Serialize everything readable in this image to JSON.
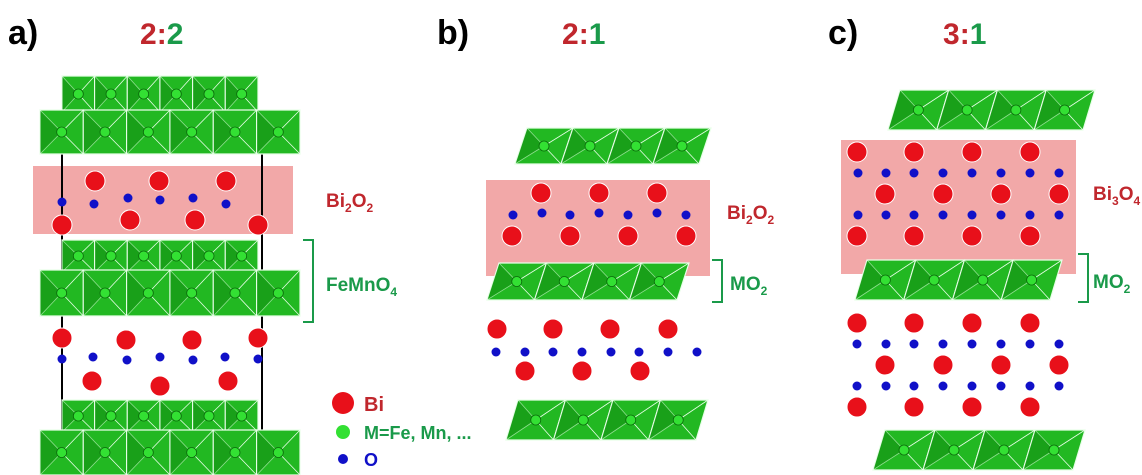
{
  "panels": [
    {
      "id": "a",
      "letter": "a)",
      "ratio": {
        "left": "2",
        "sep": ":",
        "right": "2"
      },
      "labels": [
        {
          "kind": "red",
          "main": "Bi",
          "sub1": "2",
          "mid": "O",
          "sub2": "2"
        },
        {
          "kind": "green",
          "main": "FeMnO",
          "sub1": "4",
          "mid": "",
          "sub2": ""
        }
      ]
    },
    {
      "id": "b",
      "letter": "b)",
      "ratio": {
        "left": "2",
        "sep": ":",
        "right": "1"
      },
      "labels": [
        {
          "kind": "red",
          "main": "Bi",
          "sub1": "2",
          "mid": "O",
          "sub2": "2"
        },
        {
          "kind": "green",
          "main": "MO",
          "sub1": "2",
          "mid": "",
          "sub2": ""
        }
      ]
    },
    {
      "id": "c",
      "letter": "c)",
      "ratio": {
        "left": "3",
        "sep": ":",
        "right": "1"
      },
      "labels": [
        {
          "kind": "red",
          "main": "Bi",
          "sub1": "3",
          "mid": "O",
          "sub2": "4"
        },
        {
          "kind": "green",
          "main": "MO",
          "sub1": "2",
          "mid": "",
          "sub2": ""
        }
      ]
    }
  ],
  "legend": [
    {
      "label": "Bi",
      "kind": "bi"
    },
    {
      "label": "M=Fe, Mn, ...",
      "kind": "m"
    },
    {
      "label": "O",
      "kind": "o"
    }
  ],
  "colors": {
    "red_text": "#c0272d",
    "green_text": "#1a9a4a",
    "bi_atom": "#e8101a",
    "m_atom": "#33e033",
    "o_atom": "#1010c8",
    "octahedra": "#22b822",
    "octahedra_dark": "#138d13",
    "pink_band": "#f2a8a8"
  }
}
